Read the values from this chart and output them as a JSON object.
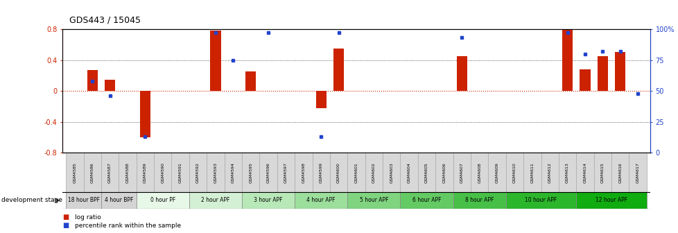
{
  "title": "GDS443 / 15045",
  "samples": [
    "GSM4585",
    "GSM4586",
    "GSM4587",
    "GSM4588",
    "GSM4589",
    "GSM4590",
    "GSM4591",
    "GSM4592",
    "GSM4593",
    "GSM4594",
    "GSM4595",
    "GSM4596",
    "GSM4597",
    "GSM4598",
    "GSM4599",
    "GSM4600",
    "GSM4601",
    "GSM4602",
    "GSM4603",
    "GSM4604",
    "GSM4605",
    "GSM4606",
    "GSM4607",
    "GSM4608",
    "GSM4609",
    "GSM4610",
    "GSM4611",
    "GSM4612",
    "GSM4613",
    "GSM4614",
    "GSM4615",
    "GSM4616",
    "GSM4617"
  ],
  "log_ratio": [
    0.0,
    0.27,
    0.14,
    0.0,
    -0.6,
    0.0,
    0.0,
    0.0,
    0.78,
    0.0,
    0.25,
    0.0,
    0.0,
    0.0,
    -0.22,
    0.55,
    0.0,
    0.0,
    0.0,
    0.0,
    0.0,
    0.0,
    0.45,
    0.0,
    0.0,
    0.0,
    0.0,
    0.0,
    0.79,
    0.28,
    0.45,
    0.5,
    0.0
  ],
  "percentile": [
    null,
    58,
    46,
    null,
    13,
    null,
    null,
    null,
    97,
    75,
    null,
    97,
    null,
    null,
    13,
    97,
    null,
    null,
    null,
    null,
    null,
    null,
    93,
    null,
    null,
    null,
    null,
    null,
    97,
    80,
    82,
    82,
    48
  ],
  "stages": [
    {
      "label": "18 hour BPF",
      "start": 0,
      "end": 2,
      "color": "#d4d4d4"
    },
    {
      "label": "4 hour BPF",
      "start": 2,
      "end": 4,
      "color": "#d4d4d4"
    },
    {
      "label": "0 hour PF",
      "start": 4,
      "end": 7,
      "color": "#e8f8e8"
    },
    {
      "label": "2 hour APF",
      "start": 7,
      "end": 10,
      "color": "#d4f0d4"
    },
    {
      "label": "3 hour APF",
      "start": 10,
      "end": 13,
      "color": "#b8e8b8"
    },
    {
      "label": "4 hour APF",
      "start": 13,
      "end": 16,
      "color": "#9cde9c"
    },
    {
      "label": "5 hour APF",
      "start": 16,
      "end": 19,
      "color": "#80d480"
    },
    {
      "label": "6 hour APF",
      "start": 19,
      "end": 22,
      "color": "#64ca64"
    },
    {
      "label": "8 hour APF",
      "start": 22,
      "end": 25,
      "color": "#48c048"
    },
    {
      "label": "10 hour APF",
      "start": 25,
      "end": 29,
      "color": "#2cb62c"
    },
    {
      "label": "12 hour APF",
      "start": 29,
      "end": 33,
      "color": "#10ac10"
    }
  ],
  "ylim": [
    -0.8,
    0.8
  ],
  "y2lim": [
    0,
    100
  ],
  "bar_color": "#cc2200",
  "marker_color": "#2244cc",
  "zero_line_color": "#cc2200",
  "dotted_color": "#333333",
  "tick_label_bg": "#d8d8d8",
  "tick_label_edge": "#999999"
}
